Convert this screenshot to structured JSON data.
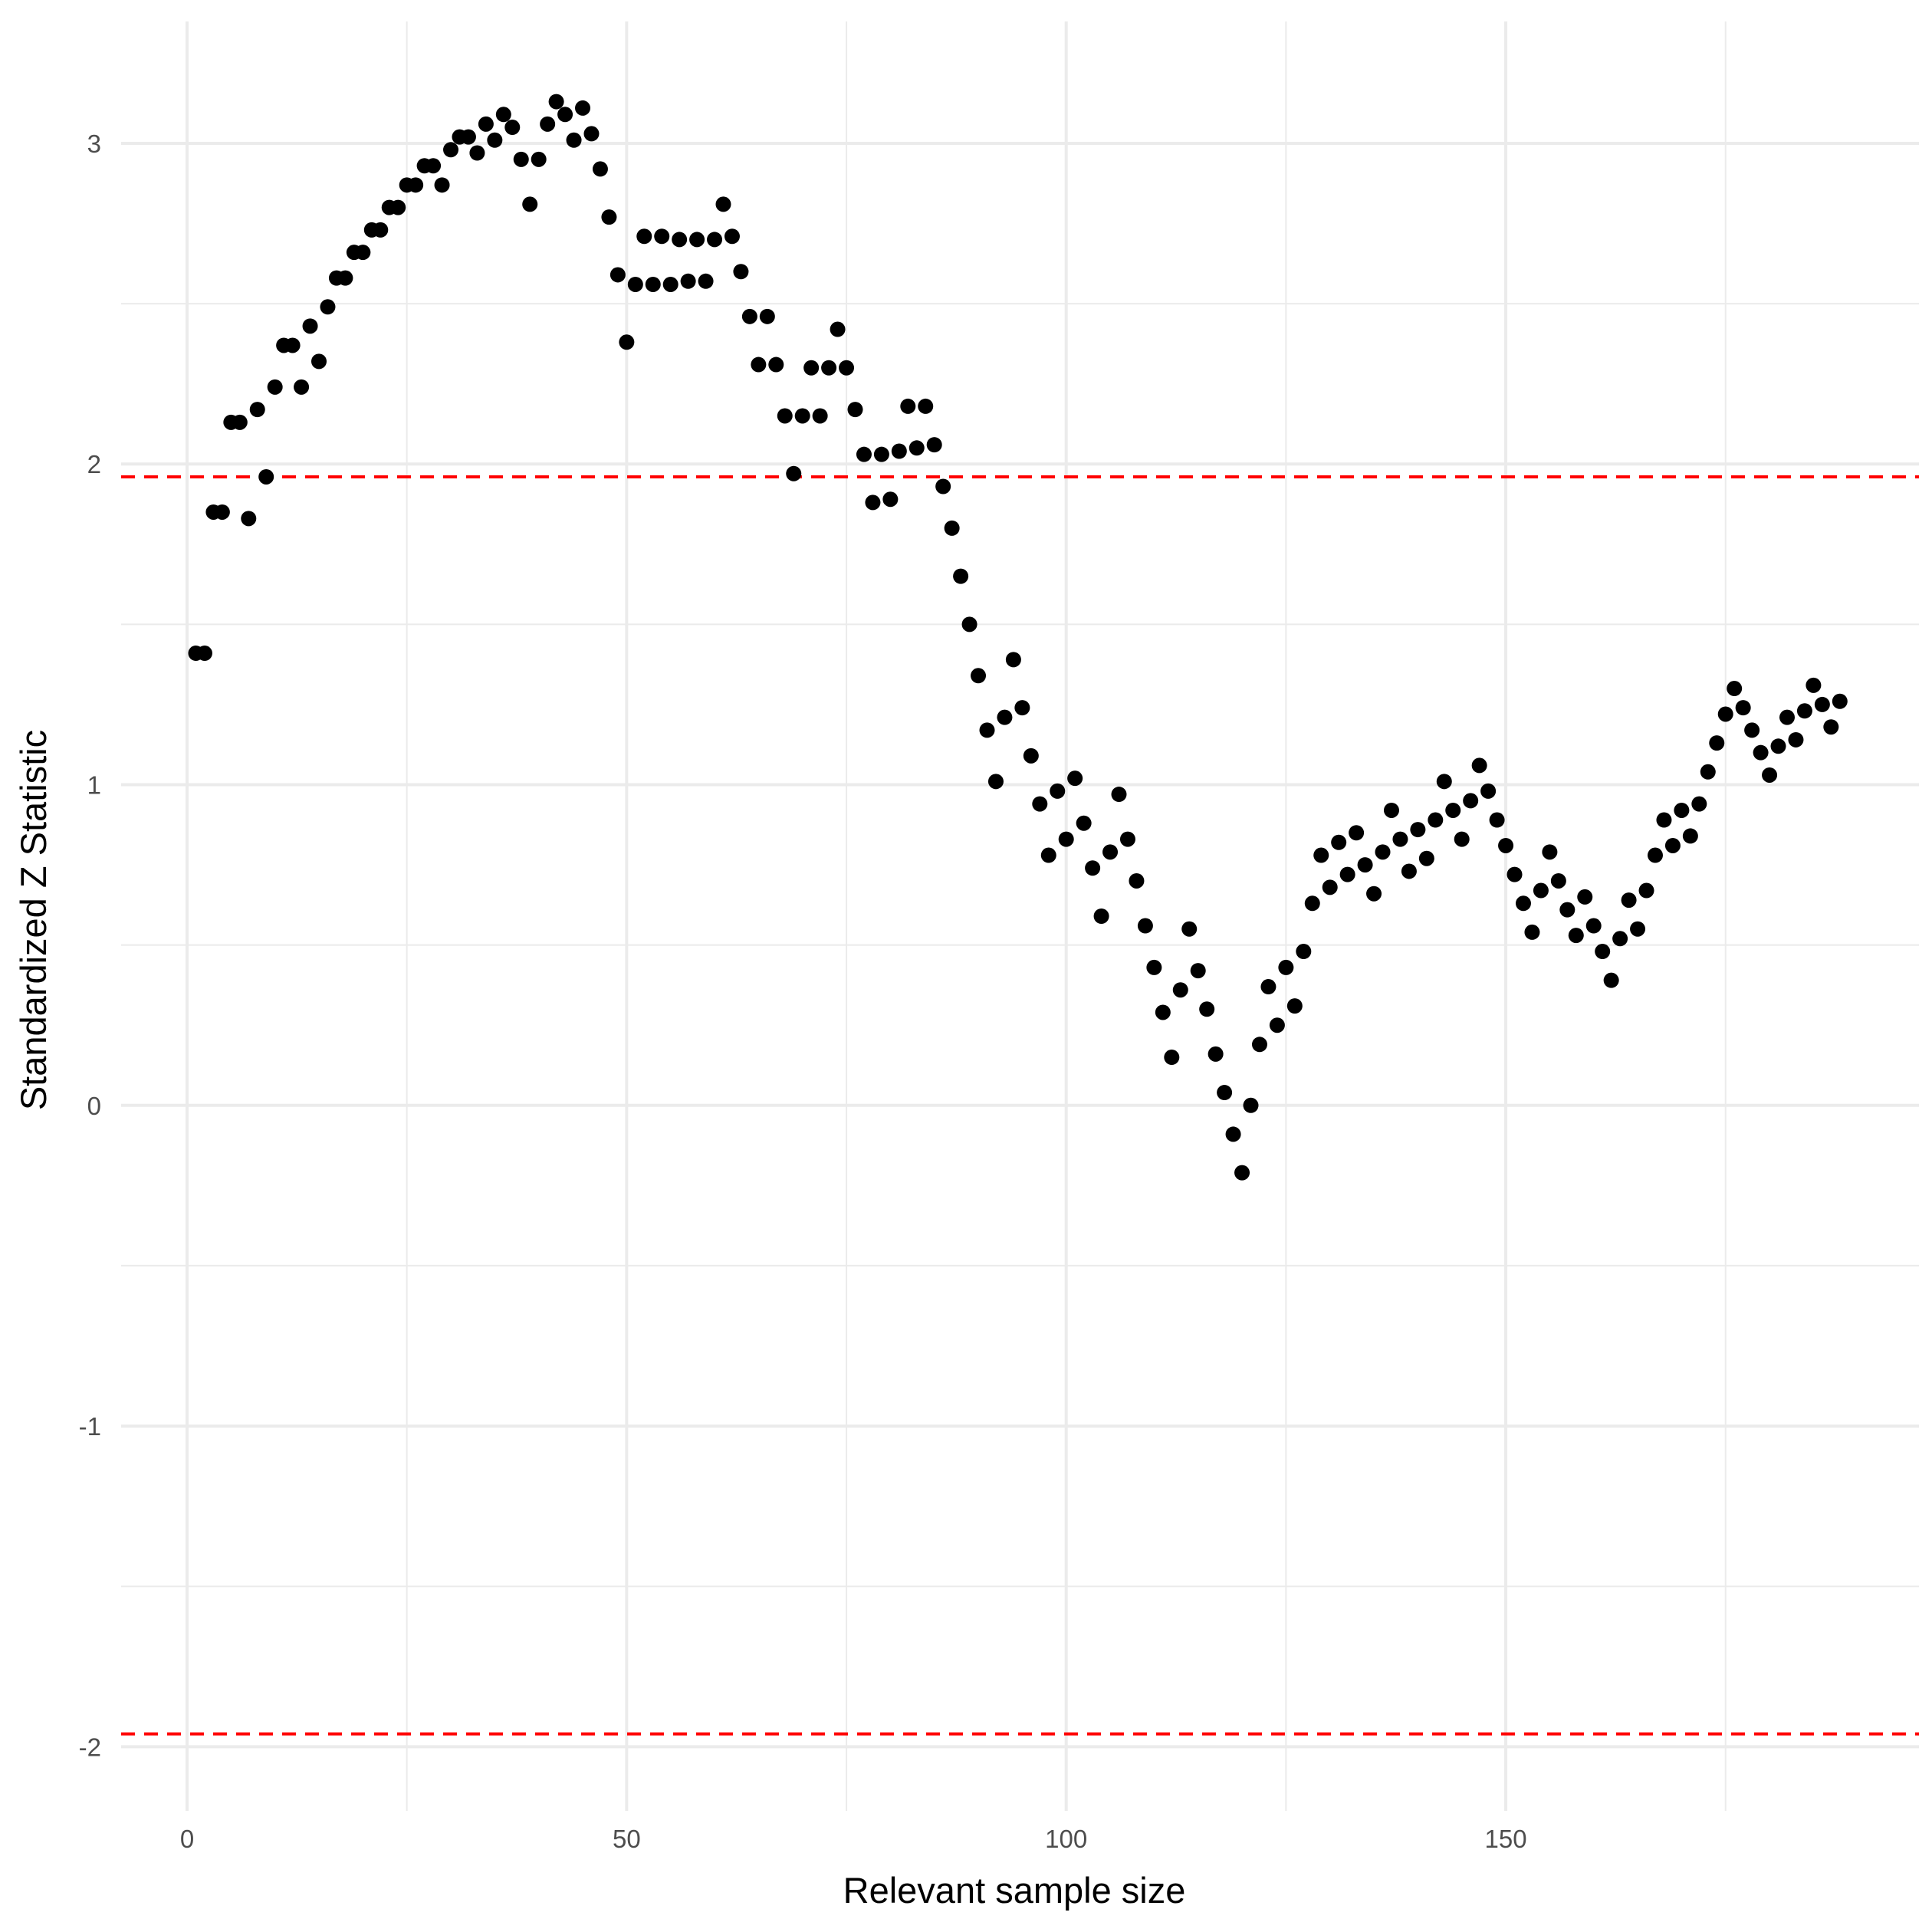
{
  "chart_data": {
    "type": "scatter",
    "title": "",
    "xlabel": "Relevant sample size",
    "ylabel": "Standardized Z Statistic",
    "xlim": [
      -7.5,
      197
    ],
    "ylim": [
      -2.2,
      3.38
    ],
    "x_ticks": [
      0,
      50,
      100,
      150
    ],
    "x_tick_labels": [
      "0",
      "50",
      "100",
      "150"
    ],
    "y_ticks": [
      -2,
      -1,
      0,
      1,
      2,
      3
    ],
    "y_tick_labels": [
      "-2",
      "-1",
      "0",
      "1",
      "2",
      "3"
    ],
    "x_minor_ticks": [
      25,
      75,
      125,
      175
    ],
    "y_minor_ticks": [
      -1.5,
      -0.5,
      0.5,
      1.5,
      2.5
    ],
    "grid": true,
    "legend": "none",
    "colors": {
      "points": "#000000",
      "reference_lines": "#ff0000",
      "grid": "#ebebeb"
    },
    "reference_lines": [
      {
        "axis": "y",
        "value": 1.96,
        "style": "dashed"
      },
      {
        "axis": "y",
        "value": -1.96,
        "style": "dashed"
      }
    ],
    "series": [
      {
        "x": [
          1,
          2,
          3,
          4,
          5,
          6,
          7,
          8,
          9,
          10,
          11,
          12,
          13,
          14,
          15,
          16,
          17,
          18,
          19,
          20,
          21,
          22,
          23,
          24,
          25,
          26,
          27,
          28,
          29,
          30,
          31,
          32,
          33,
          34,
          35,
          36,
          37,
          38,
          39,
          40,
          41,
          42,
          43,
          44,
          45,
          46,
          47,
          48,
          49,
          50,
          51,
          52,
          53,
          54,
          55,
          56,
          57,
          58,
          59,
          60,
          61,
          62,
          63,
          64,
          65,
          66,
          67,
          68,
          69,
          70,
          71,
          72,
          73,
          74,
          75,
          76,
          77,
          78,
          79,
          80,
          81,
          82,
          83,
          84,
          85,
          86,
          87,
          88,
          89,
          90,
          91,
          92,
          93,
          94,
          95,
          96,
          97,
          98,
          99,
          100,
          101,
          102,
          103,
          104,
          105,
          106,
          107,
          108,
          109,
          110,
          111,
          112,
          113,
          114,
          115,
          116,
          117,
          118,
          119,
          120,
          121,
          122,
          123,
          124,
          125,
          126,
          127,
          128,
          129,
          130,
          131,
          132,
          133,
          134,
          135,
          136,
          137,
          138,
          139,
          140,
          141,
          142,
          143,
          144,
          145,
          146,
          147,
          148,
          149,
          150,
          151,
          152,
          153,
          154,
          155,
          156,
          157,
          158,
          159,
          160,
          161,
          162,
          163,
          164,
          165,
          166,
          167,
          168,
          169,
          170,
          171,
          172,
          173,
          174,
          175,
          176,
          177,
          178,
          179,
          180,
          181,
          182,
          183,
          184,
          185,
          186,
          187,
          188
        ],
        "y": [
          1.41,
          1.41,
          1.85,
          1.85,
          2.13,
          2.13,
          1.83,
          2.17,
          1.96,
          2.24,
          2.37,
          2.37,
          2.24,
          2.43,
          2.32,
          2.49,
          2.58,
          2.58,
          2.66,
          2.66,
          2.73,
          2.73,
          2.8,
          2.8,
          2.87,
          2.87,
          2.93,
          2.93,
          2.87,
          2.98,
          3.02,
          3.02,
          2.97,
          3.06,
          3.01,
          3.09,
          3.05,
          2.95,
          2.81,
          2.95,
          3.06,
          3.13,
          3.09,
          3.01,
          3.11,
          3.03,
          2.92,
          2.77,
          2.59,
          2.38,
          2.56,
          2.71,
          2.56,
          2.71,
          2.56,
          2.7,
          2.57,
          2.7,
          2.57,
          2.7,
          2.81,
          2.71,
          2.6,
          2.46,
          2.31,
          2.46,
          2.31,
          2.15,
          1.97,
          2.15,
          2.3,
          2.15,
          2.3,
          2.42,
          2.3,
          2.17,
          2.03,
          1.88,
          2.03,
          1.89,
          2.04,
          2.18,
          2.05,
          2.18,
          2.06,
          1.93,
          1.8,
          1.65,
          1.5,
          1.34,
          1.17,
          1.01,
          1.21,
          1.39,
          1.24,
          1.09,
          0.94,
          0.78,
          0.98,
          0.83,
          1.02,
          0.88,
          0.74,
          0.59,
          0.79,
          0.97,
          0.83,
          0.7,
          0.56,
          0.43,
          0.29,
          0.15,
          0.36,
          0.55,
          0.42,
          0.3,
          0.16,
          0.04,
          -0.09,
          -0.21,
          0.0,
          0.19,
          0.37,
          0.25,
          0.43,
          0.31,
          0.48,
          0.63,
          0.78,
          0.68,
          0.82,
          0.72,
          0.85,
          0.75,
          0.66,
          0.79,
          0.92,
          0.83,
          0.73,
          0.86,
          0.77,
          0.89,
          1.01,
          0.92,
          0.83,
          0.95,
          1.06,
          0.98,
          0.89,
          0.81,
          0.72,
          0.63,
          0.54,
          0.67,
          0.79,
          0.7,
          0.61,
          0.53,
          0.65,
          0.56,
          0.48,
          0.39,
          0.52,
          0.64,
          0.55,
          0.67,
          0.78,
          0.89,
          0.81,
          0.92,
          0.84,
          0.94,
          1.04,
          1.13,
          1.22,
          1.3,
          1.24,
          1.17,
          1.1,
          1.03,
          1.12,
          1.21,
          1.14,
          1.23,
          1.31,
          1.25,
          1.18,
          1.26
        ]
      }
    ]
  }
}
